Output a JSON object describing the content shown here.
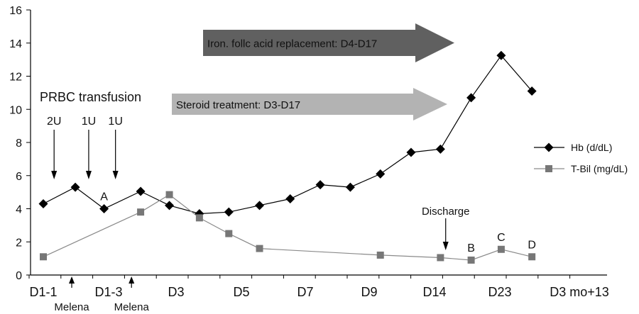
{
  "chart_data": {
    "type": "line",
    "title": "",
    "xlabel": "",
    "ylabel": "",
    "ylim": [
      0,
      16
    ],
    "yticks": [
      0,
      2,
      4,
      6,
      8,
      10,
      12,
      14,
      16
    ],
    "x_tick_labels": [
      "D1-1",
      "D1-3",
      "D3",
      "D5",
      "D7",
      "D9",
      "D14",
      "D23",
      "D3 mo+13"
    ],
    "grid": false,
    "legend_position": "right",
    "series": [
      {
        "name": "Hb (d/dL)",
        "marker": "diamond",
        "color": "#000000",
        "points": [
          {
            "x": 0.0,
            "y": 4.3
          },
          {
            "x": 0.98,
            "y": 5.3
          },
          {
            "x": 1.86,
            "y": 4.0
          },
          {
            "x": 2.98,
            "y": 5.05
          },
          {
            "x": 3.86,
            "y": 4.2
          },
          {
            "x": 4.78,
            "y": 3.7
          },
          {
            "x": 5.68,
            "y": 3.8
          },
          {
            "x": 6.62,
            "y": 4.2
          },
          {
            "x": 7.56,
            "y": 4.6
          },
          {
            "x": 8.48,
            "y": 5.45
          },
          {
            "x": 9.4,
            "y": 5.3
          },
          {
            "x": 10.32,
            "y": 6.1
          },
          {
            "x": 11.26,
            "y": 7.4
          },
          {
            "x": 12.16,
            "y": 7.6
          },
          {
            "x": 13.1,
            "y": 10.7
          },
          {
            "x": 14.02,
            "y": 13.25
          },
          {
            "x": 14.96,
            "y": 11.1
          }
        ]
      },
      {
        "name": "T-Bil (mg/dL)",
        "marker": "square",
        "color": "#777777",
        "points": [
          {
            "x": 0.0,
            "y": 1.1
          },
          {
            "x": 2.98,
            "y": 3.8
          },
          {
            "x": 3.86,
            "y": 4.85
          },
          {
            "x": 4.78,
            "y": 3.45
          },
          {
            "x": 5.68,
            "y": 2.5
          },
          {
            "x": 6.62,
            "y": 1.6
          },
          {
            "x": 10.32,
            "y": 1.2
          },
          {
            "x": 12.16,
            "y": 1.05
          },
          {
            "x": 13.1,
            "y": 0.9
          },
          {
            "x": 14.02,
            "y": 1.55
          },
          {
            "x": 14.96,
            "y": 1.1
          }
        ]
      }
    ],
    "annotations": {
      "prbc_title": "PRBC transfusion",
      "transfusions": [
        {
          "label": "2U",
          "x": 0.33
        },
        {
          "label": "1U",
          "x": 1.39
        },
        {
          "label": "1U",
          "x": 2.21
        }
      ],
      "melena": [
        {
          "label": "Melena",
          "x": 0.87
        },
        {
          "label": "Melena",
          "x": 2.7
        }
      ],
      "discharge": {
        "label": "Discharge",
        "x": 12.32
      },
      "point_letters": [
        {
          "label": "A",
          "x": 1.86,
          "y": 4.0
        },
        {
          "label": "B",
          "x": 13.1,
          "y": 0.9
        },
        {
          "label": "C",
          "x": 14.02,
          "y": 1.55
        },
        {
          "label": "D",
          "x": 14.96,
          "y": 1.1
        }
      ],
      "treatments": [
        {
          "label": "Iron. follc acid replacement: D4-D17",
          "color": "#606060"
        },
        {
          "label": "Steroid treatment: D3-D17",
          "color": "#b3b3b3"
        }
      ]
    }
  }
}
